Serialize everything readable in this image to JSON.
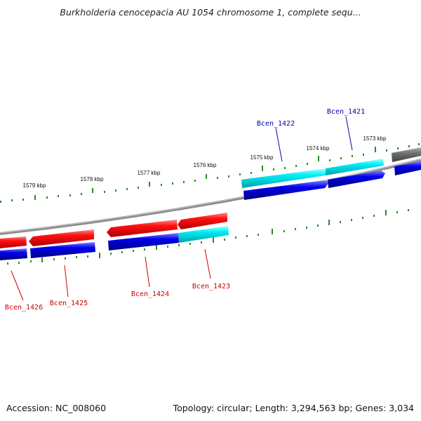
{
  "title": "Burkholderia cenocepacia AU 1054 chromosome 1, complete sequ...",
  "footer": {
    "accession": "Accession: NC_008060",
    "summary": "Topology: circular; Length: 3,294,563 bp; Genes: 3,034"
  },
  "ticks": [
    {
      "label": "1573 kbp"
    },
    {
      "label": "1574 kbp"
    },
    {
      "label": "1575 kbp"
    },
    {
      "label": "1576 kbp"
    },
    {
      "label": "1577 kbp"
    },
    {
      "label": "1578 kbp"
    },
    {
      "label": "1579 kbp"
    }
  ],
  "genes": [
    {
      "label": "Bcen_1421",
      "color": "#0000aa"
    },
    {
      "label": "Bcen_1422",
      "color": "#0000aa"
    },
    {
      "label": "Bcen_1423",
      "color": "#cc0000"
    },
    {
      "label": "Bcen_1424",
      "color": "#cc0000"
    },
    {
      "label": "Bcen_1425",
      "color": "#cc0000"
    },
    {
      "label": "Bcen_1426",
      "color": "#cc0000"
    }
  ],
  "colors": {
    "backbone": "#8a8a8a",
    "ticks": "#2a8a2a",
    "gene_red": "#ee0000",
    "gene_blue": "#0000dd",
    "gene_cyan": "#00e0e8",
    "gene_gray": "#6a6a6a"
  }
}
